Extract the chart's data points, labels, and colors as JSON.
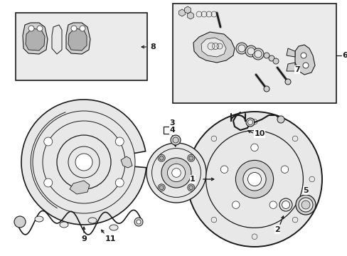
{
  "bg_color": "#ffffff",
  "line_color": "#1a1a1a",
  "fill_light": "#e8e8e8",
  "fill_mid": "#d0d0d0",
  "fill_dark": "#b0b0b0",
  "box_fill": "#ebebeb",
  "figsize": [
    4.89,
    3.6
  ],
  "dpi": 100
}
